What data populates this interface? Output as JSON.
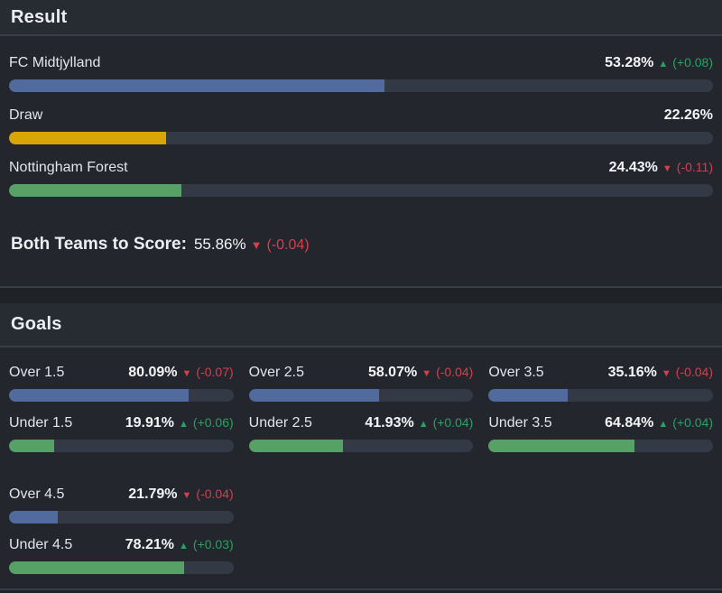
{
  "theme": {
    "page_bg": "#1f2227",
    "card_bg": "#23262c",
    "header_bg": "#272b32",
    "divider": "#373d46",
    "track": "#343a45",
    "label_text": "#e2e5e9",
    "value_text": "#f4f5f7",
    "heading_text": "#eceef1",
    "green": "#29a163",
    "red": "#d2414e",
    "bar_blue": "#516b9e",
    "bar_yellow": "#d9a506",
    "bar_green": "#57a066"
  },
  "icons": {
    "up": "▲",
    "down": "▼"
  },
  "result": {
    "title": "Result",
    "rows": [
      {
        "label": "FC Midtjylland",
        "value": "53.28%",
        "direction": "up",
        "change": "(+0.08)",
        "pct": 53.28,
        "color": "blue"
      },
      {
        "label": "Draw",
        "value": "22.26%",
        "direction": "none",
        "change": "",
        "pct": 22.26,
        "color": "yellow"
      },
      {
        "label": "Nottingham Forest",
        "value": "24.43%",
        "direction": "down",
        "change": "(-0.11)",
        "pct": 24.43,
        "color": "green"
      }
    ],
    "btts": {
      "label": "Both Teams to Score:",
      "value": "55.86%",
      "direction": "down",
      "change": "(-0.04)"
    }
  },
  "goals": {
    "title": "Goals",
    "stats": [
      {
        "label": "Over 1.5",
        "value": "80.09%",
        "direction": "down",
        "change": "(-0.07)",
        "pct": 80.09,
        "color": "blue"
      },
      {
        "label": "Under 1.5",
        "value": "19.91%",
        "direction": "up",
        "change": "(+0.06)",
        "pct": 19.91,
        "color": "green"
      },
      {
        "label": "Over 2.5",
        "value": "58.07%",
        "direction": "down",
        "change": "(-0.04)",
        "pct": 58.07,
        "color": "blue"
      },
      {
        "label": "Under 2.5",
        "value": "41.93%",
        "direction": "up",
        "change": "(+0.04)",
        "pct": 41.93,
        "color": "green"
      },
      {
        "label": "Over 3.5",
        "value": "35.16%",
        "direction": "down",
        "change": "(-0.04)",
        "pct": 35.16,
        "color": "blue"
      },
      {
        "label": "Under 3.5",
        "value": "64.84%",
        "direction": "up",
        "change": "(+0.04)",
        "pct": 64.84,
        "color": "green"
      },
      {
        "label": "Over 4.5",
        "value": "21.79%",
        "direction": "down",
        "change": "(-0.04)",
        "pct": 21.79,
        "color": "blue"
      },
      {
        "label": "Under 4.5",
        "value": "78.21%",
        "direction": "up",
        "change": "(+0.03)",
        "pct": 78.21,
        "color": "green"
      }
    ]
  }
}
